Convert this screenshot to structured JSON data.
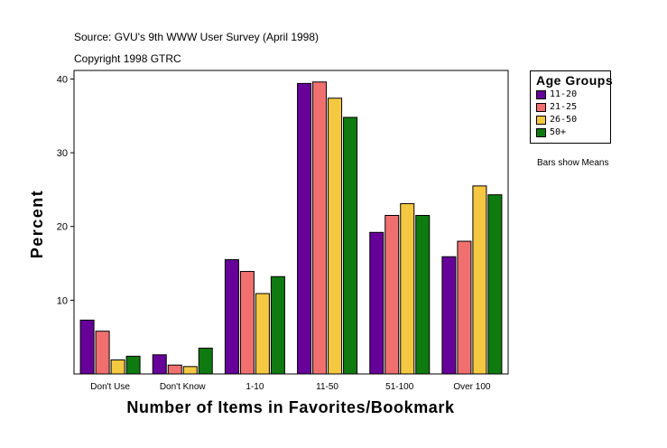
{
  "source_note": "Source: GVU's 9th WWW User Survey (April 1998)",
  "copyright_note": "Copyright 1998 GTRC",
  "bars_note": "Bars show Means",
  "chart_data": {
    "type": "bar",
    "title": "",
    "xlabel": "Number of Items in Favorites/Bookmark",
    "ylabel": "Percent",
    "ylim": [
      0,
      40
    ],
    "yticks": [
      10,
      20,
      30,
      40
    ],
    "grid": false,
    "legend_title": "Age Groups",
    "legend_position": "top-right",
    "categories": [
      "Don't Use",
      "Don't Know",
      "1-10",
      "11-50",
      "51-100",
      "Over 100"
    ],
    "series": [
      {
        "name": "11-20",
        "color": "#660099",
        "values": [
          7.3,
          2.6,
          15.5,
          39.4,
          19.2,
          15.9
        ]
      },
      {
        "name": "21-25",
        "color": "#f07070",
        "values": [
          5.8,
          1.2,
          13.9,
          39.6,
          21.5,
          18.0
        ]
      },
      {
        "name": "26-50",
        "color": "#f5c842",
        "values": [
          1.9,
          1.0,
          10.9,
          37.4,
          23.1,
          25.5
        ]
      },
      {
        "name": "50+",
        "color": "#0f7a0f",
        "values": [
          2.4,
          3.5,
          13.2,
          34.8,
          21.5,
          24.3
        ]
      }
    ]
  }
}
